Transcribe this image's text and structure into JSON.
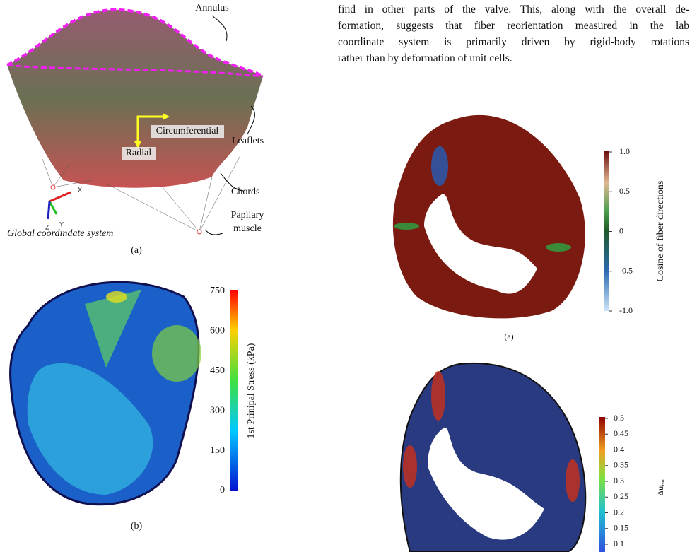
{
  "paragraph": [
    "find in other parts of the valve. This, along with the overall de-",
    "formation, suggests that fiber reorientation measured in the lab",
    "coordinate system is primarily driven by rigid-body rotations",
    "rather than by deformation of unit cells."
  ],
  "figure_valve": {
    "labels": {
      "annulus": "Annulus",
      "circumferential": "Circumferential",
      "radial": "Radial",
      "leaflets": "Leaflets",
      "chords": "Chords",
      "papillary": [
        "Papilary",
        "muscle"
      ],
      "system": "Global coordindate system",
      "x": "X",
      "y": "Y",
      "z": "Z"
    },
    "caption": "(a)"
  },
  "figure_stress": {
    "colorbar_label": "1st Prinipal Stress (kPa)",
    "ticks": [
      "750",
      "600",
      "450",
      "300",
      "150",
      "0"
    ],
    "caption": "(b)"
  },
  "figure_cosine": {
    "colorbar_label": "Cosine of fiber directions",
    "ticks": [
      "1.0",
      "0.5",
      "0",
      "-0.5",
      "-1.0"
    ],
    "caption": "(a)"
  },
  "figure_delta": {
    "colorbar_label": {
      "symbol": "Δu",
      "subscript": "iso"
    },
    "ticks": [
      "0.5",
      "0.45",
      "0.4",
      "0.35",
      "0.3",
      "0.25",
      "0.2",
      "0.15",
      "0.1"
    ]
  }
}
